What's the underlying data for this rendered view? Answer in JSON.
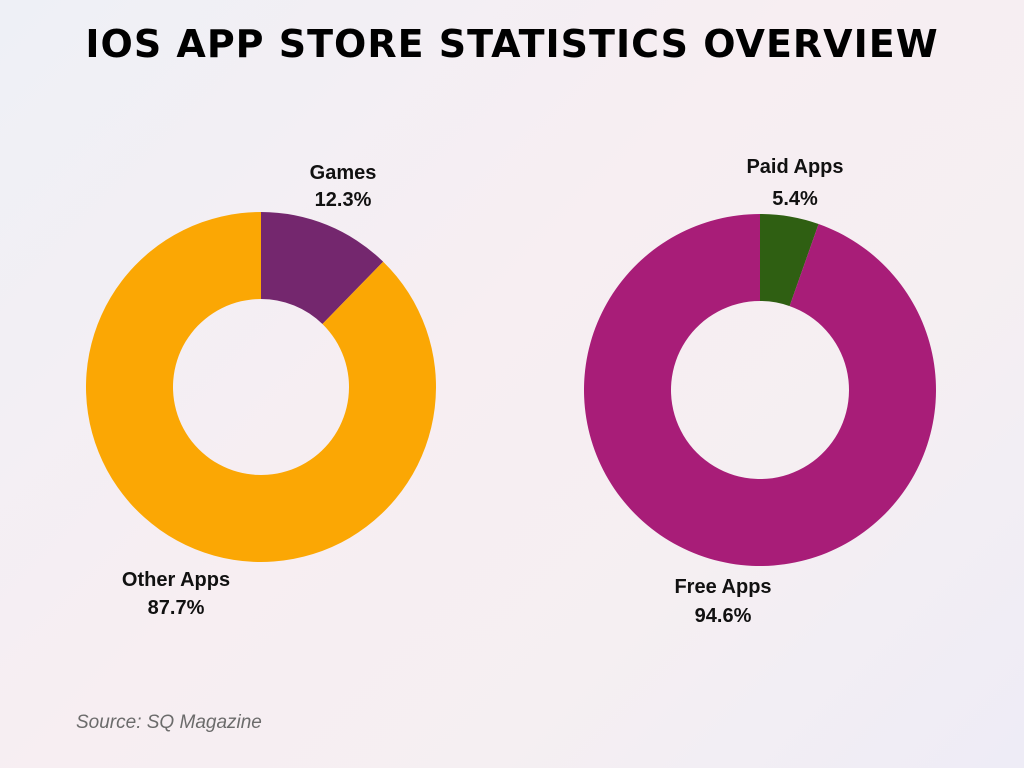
{
  "title": "IOS APP STORE STATISTICS OVERVIEW",
  "source": "Source: SQ Magazine",
  "chart_data": [
    {
      "type": "pie",
      "variant": "donut",
      "slices": [
        {
          "label": "Games",
          "value": 12.3,
          "value_text": "12.3%",
          "color": "#74276e"
        },
        {
          "label": "Other Apps",
          "value": 87.7,
          "value_text": "87.7%",
          "color": "#fba704"
        }
      ]
    },
    {
      "type": "pie",
      "variant": "donut",
      "slices": [
        {
          "label": "Paid Apps",
          "value": 5.4,
          "value_text": "5.4%",
          "color": "#2f5f12"
        },
        {
          "label": "Free Apps",
          "value": 94.6,
          "value_text": "94.6%",
          "color": "#a81d78"
        }
      ]
    }
  ]
}
